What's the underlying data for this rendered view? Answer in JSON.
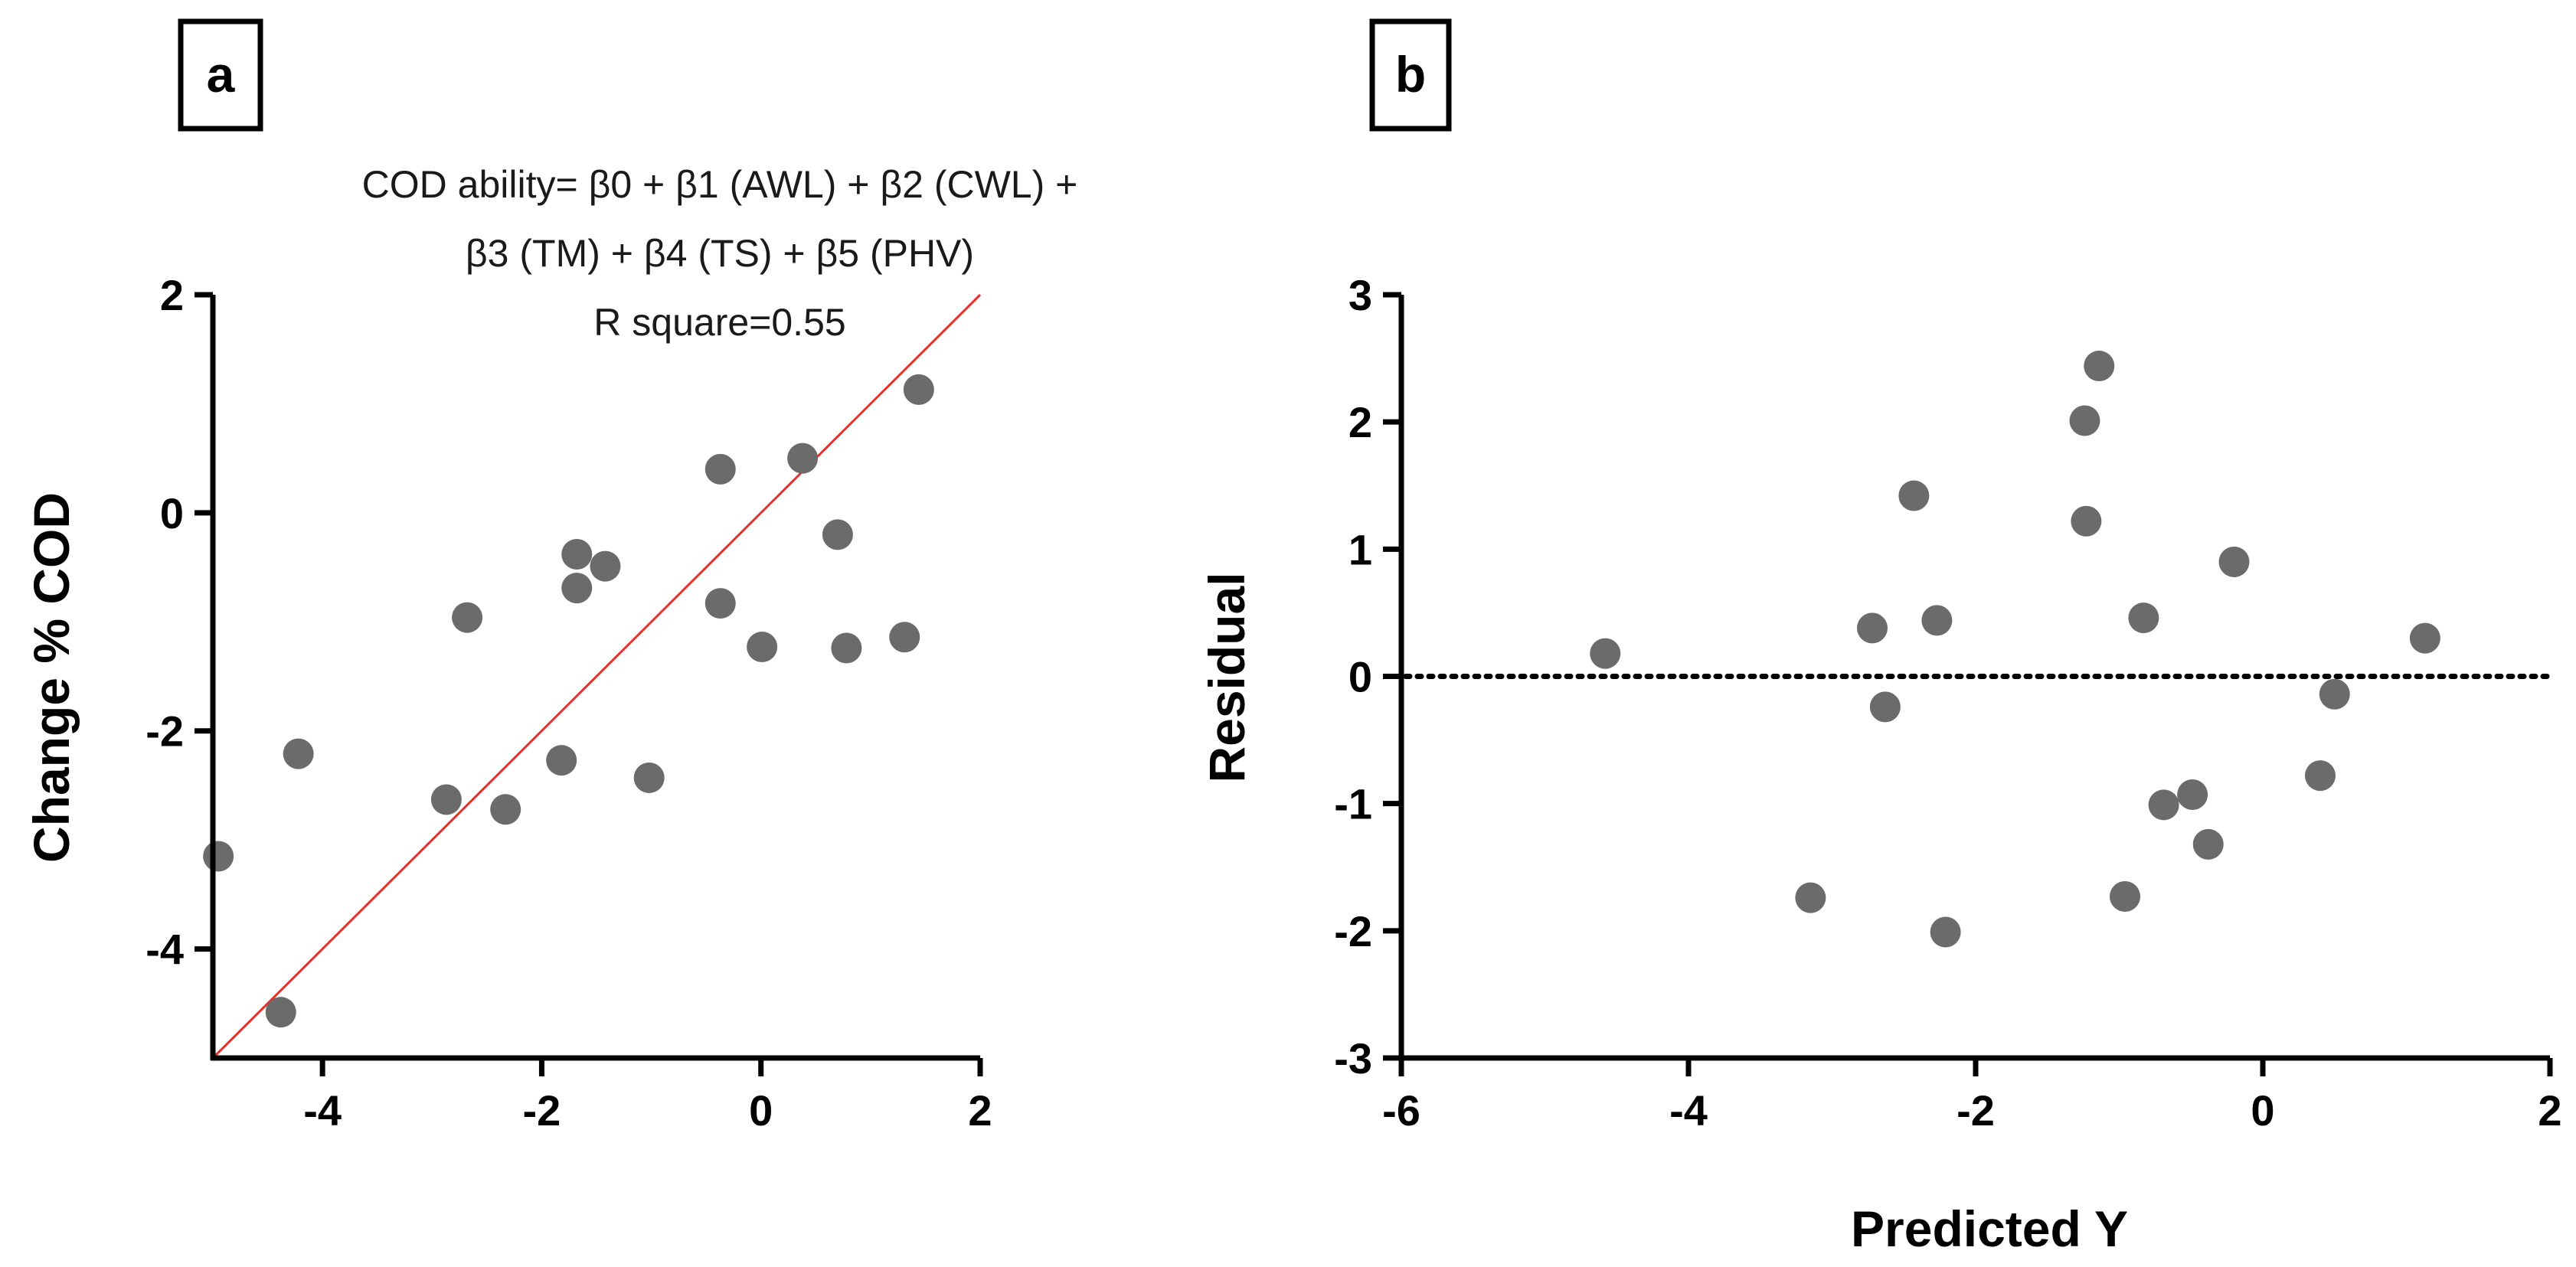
{
  "chart_data": [
    {
      "type": "scatter",
      "panel_label": "a",
      "equation_lines": [
        "COD ability= β0 + β1 (AWL) + β2 (CWL) +",
        "β3 (TM) + β4 (TS) + β5 (PHV)",
        "R square=0.55"
      ],
      "xlabel": "",
      "ylabel": "Change % COD",
      "xlim": [
        -5,
        2
      ],
      "ylim": [
        -5,
        2
      ],
      "xticks": [
        -4,
        -2,
        0,
        2
      ],
      "yticks": [
        -4,
        -2,
        0,
        2
      ],
      "reference_line": {
        "type": "identity",
        "color": "#e8302a"
      },
      "marker_color": "#6b6b6b",
      "x": [
        -4.95,
        -4.38,
        -4.22,
        -2.87,
        -2.68,
        -2.33,
        -1.82,
        -1.68,
        -1.68,
        -1.42,
        -1.02,
        -0.37,
        -0.37,
        0.01,
        0.38,
        0.7,
        0.78,
        1.31,
        1.44
      ],
      "y": [
        -3.15,
        -4.58,
        -2.21,
        -2.63,
        -0.96,
        -2.72,
        -2.27,
        -0.38,
        -0.69,
        -0.49,
        -2.43,
        0.4,
        -0.83,
        -1.23,
        0.5,
        -0.2,
        -1.24,
        -1.14,
        1.13
      ]
    },
    {
      "type": "scatter",
      "panel_label": "b",
      "xlabel": "Predicted Y",
      "ylabel": "Residual",
      "xlim": [
        -6,
        2
      ],
      "ylim": [
        -3,
        3
      ],
      "xticks": [
        -6,
        -4,
        -2,
        0,
        2
      ],
      "yticks": [
        -3,
        -2,
        -1,
        0,
        1,
        2,
        3
      ],
      "zero_line": {
        "y": 0,
        "style": "dotted"
      },
      "marker_color": "#6b6b6b",
      "x": [
        -4.58,
        -3.15,
        -2.72,
        -2.63,
        -2.43,
        -2.27,
        -2.21,
        -1.24,
        -1.23,
        -1.14,
        -0.96,
        -0.83,
        -0.69,
        -0.49,
        -0.38,
        -0.2,
        0.4,
        0.5,
        1.13
      ],
      "y": [
        0.18,
        -1.74,
        0.38,
        -0.24,
        1.42,
        0.44,
        -2.01,
        2.01,
        1.22,
        2.44,
        -1.73,
        0.46,
        -1.01,
        -0.93,
        -1.32,
        0.9,
        -0.78,
        -0.14,
        0.3
      ]
    }
  ]
}
